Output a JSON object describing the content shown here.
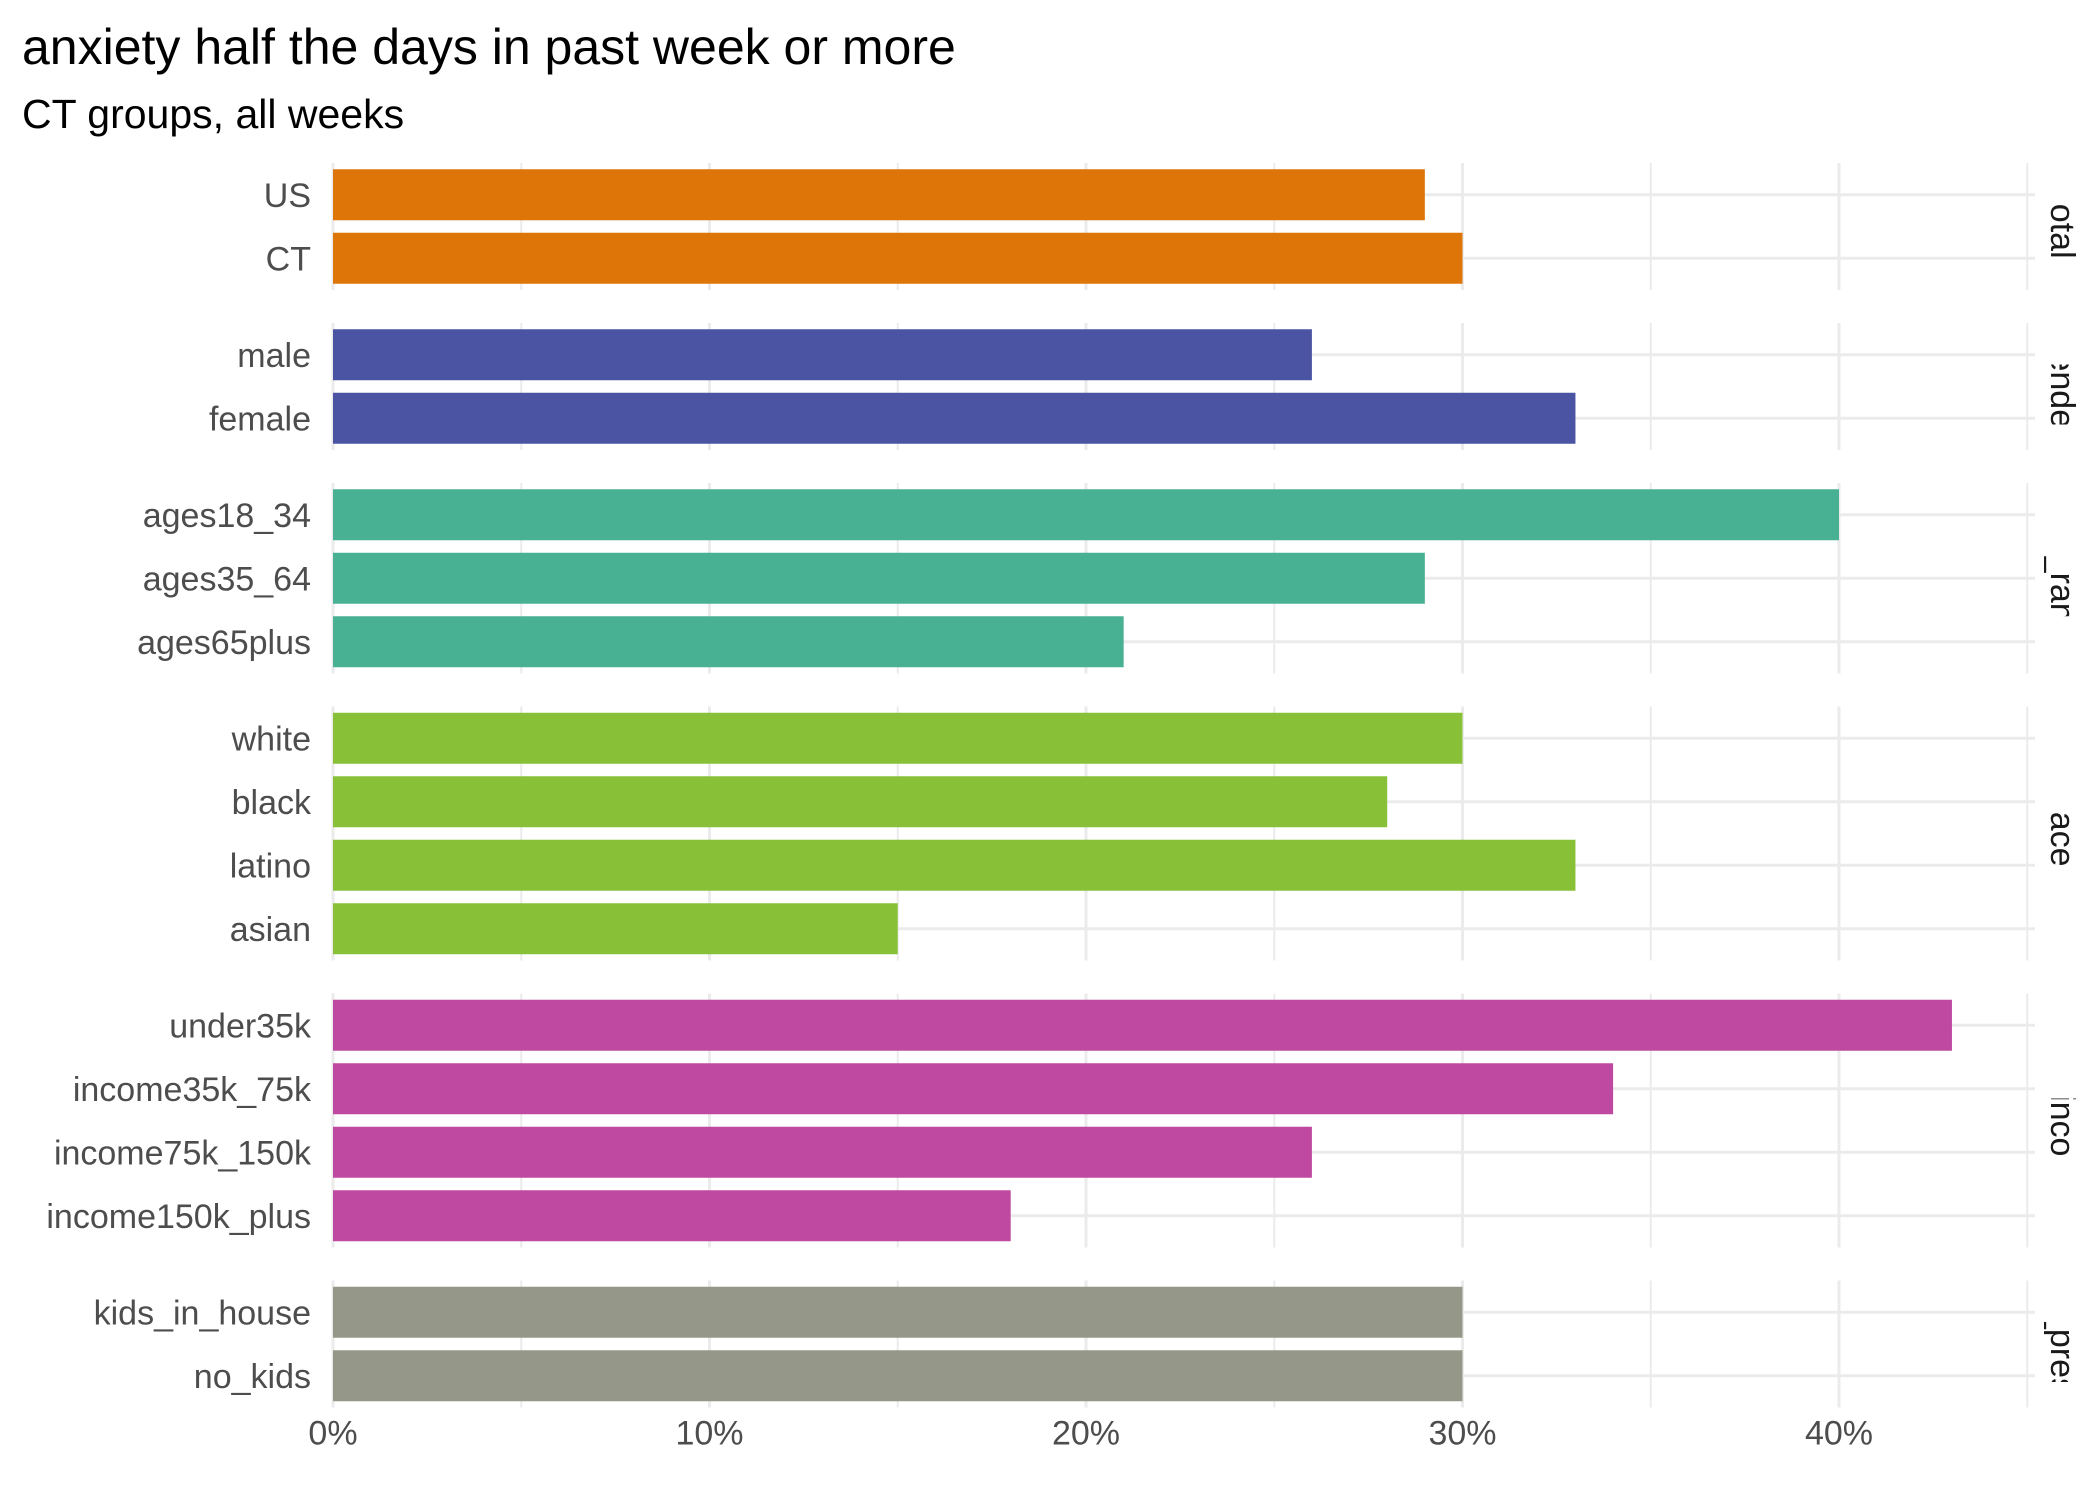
{
  "chart_data": {
    "type": "bar",
    "orientation": "horizontal",
    "title": "anxiety half the days in past week or more",
    "subtitle": "CT groups, all weeks",
    "xlim": [
      0,
      45
    ],
    "x_ticks": [
      0,
      10,
      20,
      30,
      40
    ],
    "x_tick_labels": [
      "0%",
      "10%",
      "20%",
      "30%",
      "40%"
    ],
    "grid": true,
    "facets": [
      {
        "name": "total",
        "color": "#DE7509",
        "categories": [
          "US",
          "CT"
        ],
        "values": [
          29,
          30
        ]
      },
      {
        "name": "gender",
        "color": "#4B53A3",
        "categories": [
          "male",
          "female"
        ],
        "values": [
          26,
          33
        ]
      },
      {
        "name": "age_range",
        "color": "#48B193",
        "categories": [
          "ages18_34",
          "ages35_64",
          "ages65plus"
        ],
        "values": [
          40,
          29,
          21
        ]
      },
      {
        "name": "race",
        "color": "#88C138",
        "categories": [
          "white",
          "black",
          "latino",
          "asian"
        ],
        "values": [
          30,
          28,
          33,
          15
        ]
      },
      {
        "name": "hh_income",
        "color": "#BF49A0",
        "categories": [
          "under35k",
          "income35k_75k",
          "income75k_150k",
          "income150k_plus"
        ],
        "values": [
          43,
          34,
          26,
          18
        ]
      },
      {
        "name": "kids_present",
        "strip_text": "ds_prese",
        "color": "#959888",
        "categories": [
          "kids_in_house",
          "no_kids"
        ],
        "values": [
          30,
          30
        ]
      }
    ]
  }
}
